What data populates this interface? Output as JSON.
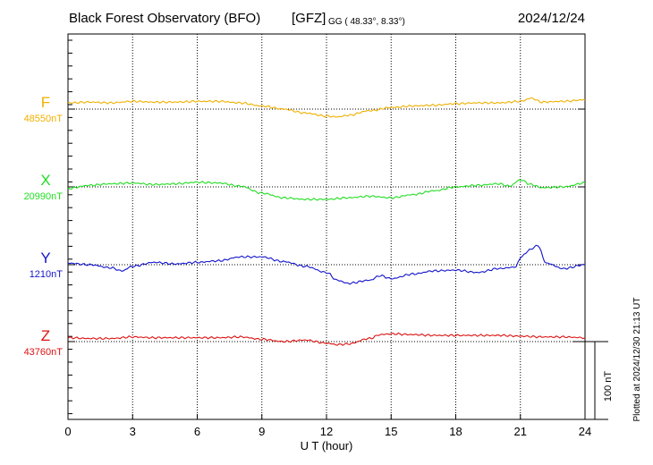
{
  "chart_data": {
    "type": "line",
    "title": "Black Forest Observatory (BFO)",
    "source": "[GFZ]",
    "coords_label": "GG ( 48.33°,   8.33°)",
    "date": "2024/12/24",
    "xlabel": "U T (hour)",
    "x_ticks": [
      0,
      3,
      6,
      9,
      12,
      15,
      18,
      21,
      24
    ],
    "xlim": [
      0,
      24
    ],
    "grid": true,
    "scale_label": "100 nT",
    "scale_nT": 100,
    "plotted_note": "Plotted at 2024/12/30 21:13 UT",
    "series": [
      {
        "name": "F",
        "baseline_label": "48550nT",
        "baseline_nT": 48550,
        "color": "#f0b000",
        "x": [
          0,
          1,
          2,
          3,
          4,
          5,
          6,
          7,
          8,
          9,
          10,
          11,
          12,
          12.5,
          13,
          14,
          15,
          16,
          17,
          18,
          19,
          20,
          21,
          21.5,
          22,
          23,
          24
        ],
        "values": [
          8,
          9,
          8,
          10,
          9,
          9,
          10,
          10,
          8,
          4,
          0,
          -5,
          -9,
          -10,
          -8,
          -2,
          2,
          4,
          5,
          7,
          8,
          8,
          10,
          14,
          9,
          10,
          12
        ]
      },
      {
        "name": "X",
        "baseline_label": "20990nT",
        "baseline_nT": 20990,
        "color": "#22dd22",
        "x": [
          0,
          1,
          2,
          3,
          4,
          5,
          6,
          7,
          8,
          9,
          10,
          11,
          12,
          13,
          14,
          15,
          16,
          17,
          18,
          19,
          20,
          20.5,
          21,
          21.5,
          22,
          23,
          24
        ],
        "values": [
          -2,
          2,
          4,
          5,
          3,
          4,
          6,
          5,
          1,
          -8,
          -14,
          -16,
          -16,
          -14,
          -12,
          -14,
          -10,
          -5,
          0,
          2,
          4,
          1,
          9,
          3,
          -1,
          0,
          5
        ]
      },
      {
        "name": "Y",
        "baseline_label": "1210nT",
        "baseline_nT": 1210,
        "color": "#1515cc",
        "x": [
          0,
          1,
          2,
          2.5,
          3,
          4,
          5,
          6,
          7,
          8,
          9,
          10,
          11,
          12,
          12.5,
          13,
          14,
          14.5,
          15,
          16,
          17,
          18,
          19,
          20,
          20.8,
          21,
          21.5,
          21.8,
          22.2,
          23,
          24
        ],
        "values": [
          2,
          0,
          -4,
          -8,
          -2,
          3,
          1,
          3,
          5,
          10,
          10,
          4,
          -2,
          -10,
          -20,
          -24,
          -20,
          -14,
          -18,
          -12,
          -8,
          -7,
          -10,
          -5,
          -3,
          10,
          20,
          25,
          2,
          -5,
          0
        ]
      },
      {
        "name": "Z",
        "baseline_label": "43760nT",
        "baseline_nT": 43760,
        "color": "#dd1111",
        "x": [
          0,
          1,
          2,
          3,
          4,
          5,
          6,
          7,
          8,
          9,
          10,
          11,
          12,
          12.5,
          13,
          14,
          14.5,
          15,
          16,
          17,
          18,
          19,
          20,
          21,
          22,
          23,
          24
        ],
        "values": [
          5,
          4,
          4,
          6,
          5,
          5,
          5,
          5,
          6,
          3,
          0,
          2,
          -2,
          -4,
          -3,
          4,
          9,
          10,
          9,
          8,
          8,
          8,
          8,
          7,
          6,
          6,
          5
        ]
      }
    ]
  },
  "colors": {
    "frame": "#000000",
    "grid": "#000000"
  }
}
